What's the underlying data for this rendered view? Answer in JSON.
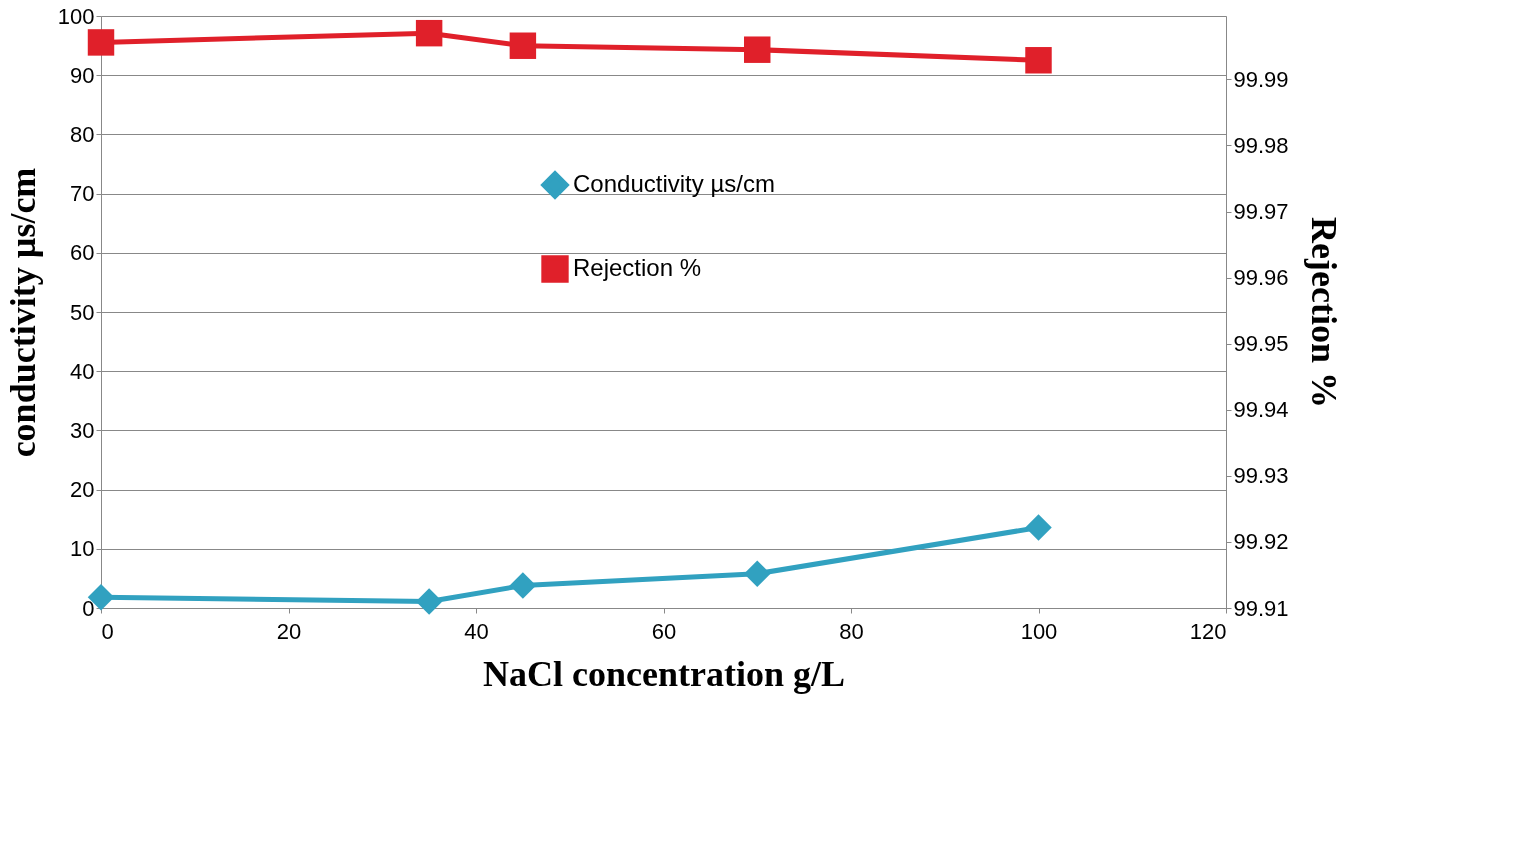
{
  "chart_data": {
    "type": "line",
    "xlabel": "NaCl concentration g/L",
    "ylabel": "conductivity µs/cm",
    "y2label": "Rejection %",
    "x": [
      0,
      35,
      45,
      70,
      100
    ],
    "series": [
      {
        "name": "Conductivity µs/cm",
        "color": "#31a1c0",
        "marker": "diamond",
        "values": [
          1.8,
          1.1,
          3.8,
          5.8,
          13.6
        ]
      },
      {
        "name": "Rejection %",
        "color": "#e0202a",
        "marker": "square",
        "axis": "y2",
        "values": [
          99.9956,
          99.997,
          99.9951,
          99.9945,
          99.9929
        ]
      }
    ],
    "xlim": [
      0,
      120
    ],
    "xticks": [
      0,
      20,
      40,
      60,
      80,
      100,
      120
    ],
    "ylim": [
      0,
      100
    ],
    "yticks": [
      0,
      10,
      20,
      30,
      40,
      50,
      60,
      70,
      80,
      90,
      100
    ],
    "y2lim": [
      99.91,
      99.9996
    ],
    "y2ticks": [
      99.91,
      99.92,
      99.93,
      99.94,
      99.95,
      99.96,
      99.97,
      99.98,
      99.99
    ],
    "grid": "y",
    "legend": "top",
    "line_style": "solid"
  }
}
